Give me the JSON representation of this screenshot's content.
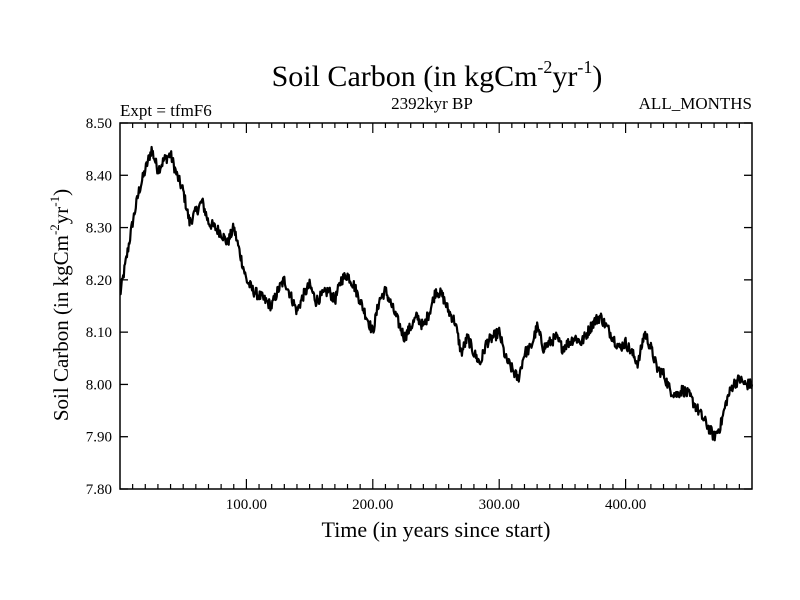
{
  "chart_data": {
    "type": "line",
    "title_main": "Soil Carbon (in kgCm",
    "title_sup1": "-2",
    "title_mid": "yr",
    "title_sup2": "-1",
    "title_end": ")",
    "expt_label": "Expt = tfmF6",
    "subtitle_center": "2392kyr BP",
    "subtitle_right": "ALL_MONTHS",
    "xlabel": "Time (in years since start)",
    "ylabel_main": "Soil Carbon (in kgCm",
    "ylabel_sup1": "-2",
    "ylabel_mid": "yr",
    "ylabel_sup2": "-1",
    "ylabel_end": ")",
    "xlim": [
      0,
      500
    ],
    "ylim": [
      7.8,
      8.5
    ],
    "xticks": [
      100,
      200,
      300,
      400
    ],
    "xtick_labels": [
      "100.00",
      "200.00",
      "300.00",
      "400.00"
    ],
    "yticks": [
      7.8,
      7.9,
      8.0,
      8.1,
      8.2,
      8.3,
      8.4,
      8.5
    ],
    "ytick_labels": [
      "7.80",
      "7.90",
      "8.00",
      "8.10",
      "8.20",
      "8.30",
      "8.40",
      "8.50"
    ],
    "series": [
      {
        "name": "Soil Carbon",
        "color": "#000000",
        "x": [
          0,
          5,
          10,
          15,
          20,
          25,
          30,
          35,
          40,
          45,
          50,
          55,
          60,
          65,
          70,
          75,
          80,
          85,
          90,
          95,
          100,
          105,
          110,
          115,
          120,
          125,
          130,
          135,
          140,
          145,
          150,
          155,
          160,
          165,
          170,
          175,
          180,
          185,
          190,
          195,
          200,
          205,
          210,
          215,
          220,
          225,
          230,
          235,
          240,
          245,
          250,
          255,
          260,
          265,
          270,
          275,
          280,
          285,
          290,
          295,
          300,
          305,
          310,
          315,
          320,
          325,
          330,
          335,
          340,
          345,
          350,
          355,
          360,
          365,
          370,
          375,
          380,
          385,
          390,
          395,
          400,
          405,
          410,
          415,
          420,
          425,
          430,
          435,
          440,
          445,
          450,
          455,
          460,
          465,
          470,
          475,
          480,
          485,
          490,
          495,
          500
        ],
        "values": [
          8.17,
          8.24,
          8.31,
          8.37,
          8.41,
          8.45,
          8.41,
          8.43,
          8.44,
          8.4,
          8.37,
          8.31,
          8.33,
          8.35,
          8.31,
          8.3,
          8.29,
          8.27,
          8.3,
          8.25,
          8.2,
          8.18,
          8.17,
          8.16,
          8.15,
          8.18,
          8.2,
          8.17,
          8.14,
          8.17,
          8.19,
          8.16,
          8.17,
          8.18,
          8.16,
          8.2,
          8.21,
          8.19,
          8.16,
          8.13,
          8.1,
          8.16,
          8.18,
          8.15,
          8.12,
          8.09,
          8.11,
          8.13,
          8.11,
          8.14,
          8.18,
          8.17,
          8.14,
          8.12,
          8.06,
          8.09,
          8.06,
          8.04,
          8.08,
          8.09,
          8.1,
          8.05,
          8.03,
          8.01,
          8.06,
          8.07,
          8.11,
          8.07,
          8.08,
          8.09,
          8.07,
          8.08,
          8.09,
          8.08,
          8.1,
          8.12,
          8.13,
          8.11,
          8.09,
          8.07,
          8.08,
          8.06,
          8.04,
          8.1,
          8.07,
          8.03,
          8.02,
          7.99,
          7.98,
          7.99,
          7.98,
          7.96,
          7.94,
          7.92,
          7.9,
          7.92,
          7.97,
          8.0,
          8.01,
          8.0,
          8.0
        ]
      }
    ]
  }
}
